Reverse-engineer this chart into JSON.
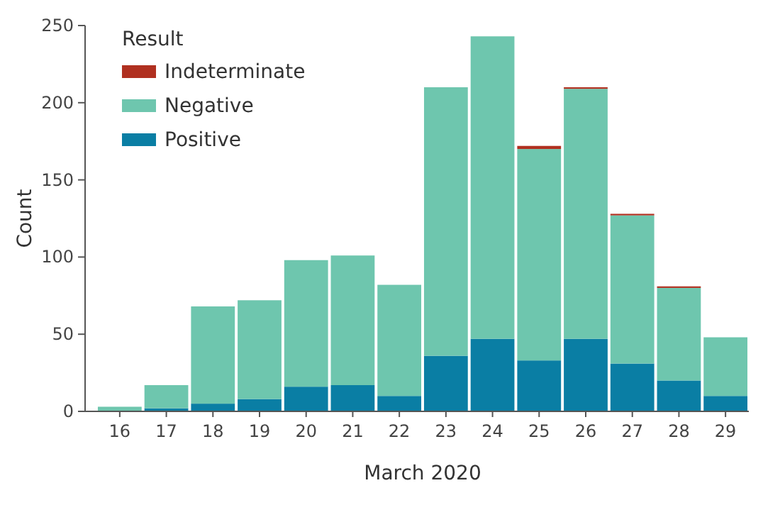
{
  "chart_data": {
    "type": "bar",
    "stacked": true,
    "xlabel": "March 2020",
    "ylabel": "Count",
    "legend_title": "Result",
    "legend": "top left",
    "grid": false,
    "categories": [
      "16",
      "17",
      "18",
      "19",
      "20",
      "21",
      "22",
      "23",
      "24",
      "25",
      "26",
      "27",
      "28",
      "29"
    ],
    "series": [
      {
        "name": "Positive",
        "color": "#0a7ea4",
        "values": [
          0,
          2,
          5,
          8,
          16,
          17,
          10,
          36,
          47,
          33,
          47,
          31,
          20,
          10
        ]
      },
      {
        "name": "Negative",
        "color": "#6ec6ae",
        "values": [
          3,
          15,
          63,
          64,
          82,
          84,
          72,
          174,
          196,
          137,
          162,
          96,
          60,
          38
        ]
      },
      {
        "name": "Indeterminate",
        "color": "#b03020",
        "values": [
          0,
          0,
          0,
          0,
          0,
          0,
          0,
          0,
          0,
          2,
          1,
          1,
          1,
          0
        ]
      }
    ],
    "ylim": [
      0,
      250
    ],
    "yticks": [
      0,
      50,
      100,
      150,
      200,
      250
    ]
  }
}
